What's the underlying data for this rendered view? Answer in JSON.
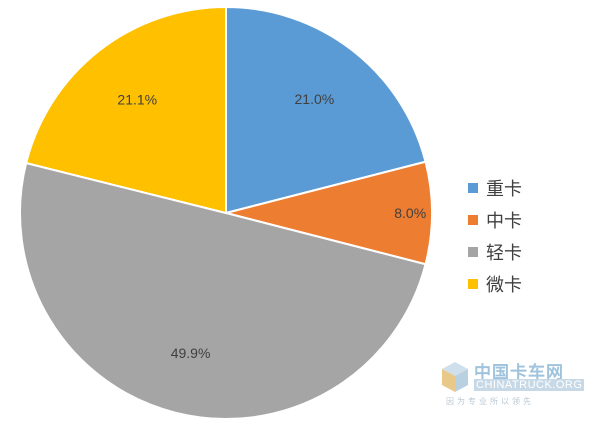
{
  "chart_data": {
    "type": "pie",
    "title": "",
    "categories": [
      "重卡",
      "中卡",
      "轻卡",
      "微卡"
    ],
    "values": [
      21.0,
      8.0,
      49.9,
      21.1
    ],
    "labels": [
      "21.0%",
      "8.0%",
      "49.9%",
      "21.1%"
    ],
    "colors": [
      "#5b9bd5",
      "#ed7d31",
      "#a5a5a5",
      "#ffc000"
    ],
    "start_angle": "12 o'clock",
    "direction": "clockwise",
    "legend_position": "right"
  },
  "watermark": {
    "title": "中国卡车网",
    "subtitle": "CHINATRUCK.ORG",
    "slogan": "因为专业所以领先"
  }
}
